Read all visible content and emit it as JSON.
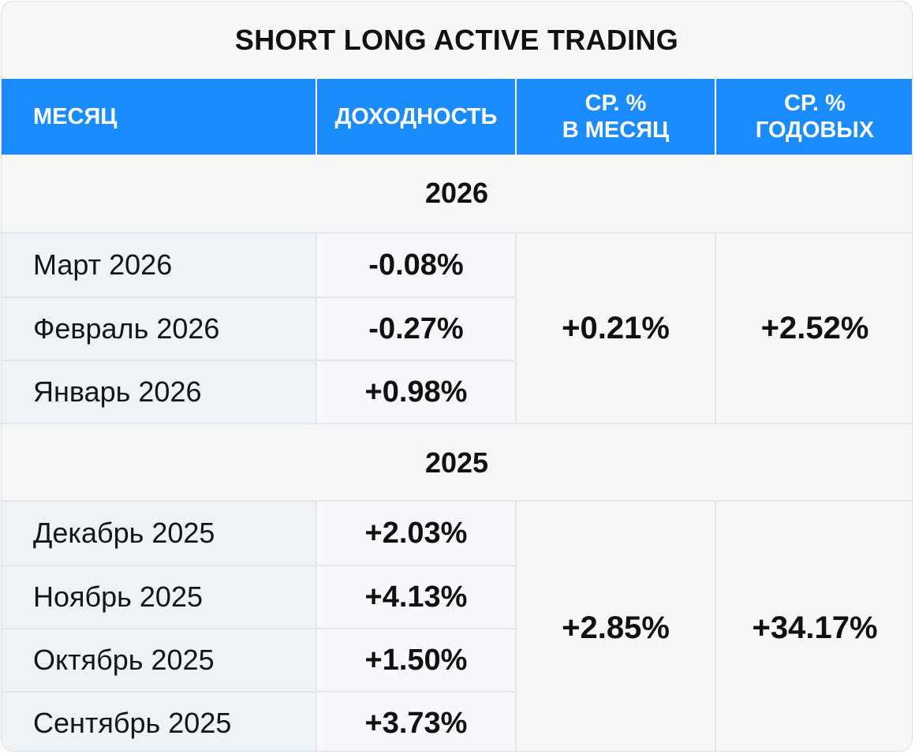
{
  "title": "SHORT LONG ACTIVE TRADING",
  "colors": {
    "header_bg": "#1a8cff",
    "header_text": "#ffffff",
    "month_bg": "#eef3f8",
    "card_bg": "#f7f7f8"
  },
  "headers": {
    "month": "МЕСЯЦ",
    "return": "ДОХОДНОСТЬ",
    "avg_month_line1": "СР. %",
    "avg_month_line2": "В МЕСЯЦ",
    "avg_year_line1": "СР. %",
    "avg_year_line2": "ГОДОВЫХ"
  },
  "groups": [
    {
      "year": "2026",
      "rows": [
        {
          "month": "Март 2026",
          "return": "-0.08%"
        },
        {
          "month": "Февраль 2026",
          "return": "-0.27%"
        },
        {
          "month": "Январь 2026",
          "return": "+0.98%"
        }
      ],
      "avg_month": "+0.21%",
      "avg_year": "+2.52%"
    },
    {
      "year": "2025",
      "rows": [
        {
          "month": "Декабрь 2025",
          "return": "+2.03%"
        },
        {
          "month": "Ноябрь 2025",
          "return": "+4.13%"
        },
        {
          "month": "Октябрь 2025",
          "return": "+1.50%"
        },
        {
          "month": "Сентябрь 2025",
          "return": "+3.73%"
        }
      ],
      "avg_month": "+2.85%",
      "avg_year": "+34.17%"
    }
  ]
}
